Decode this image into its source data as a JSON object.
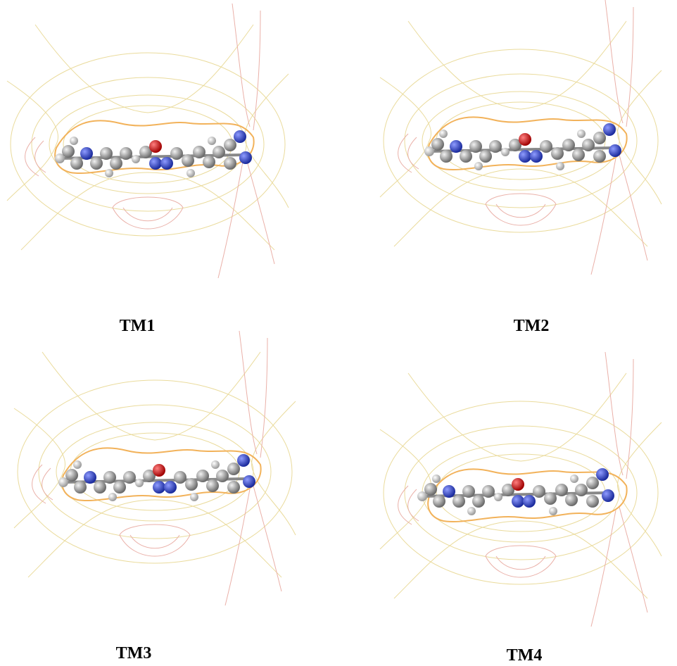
{
  "panels": [
    {
      "label": "TM1"
    },
    {
      "label": "TM2"
    },
    {
      "label": "TM3"
    },
    {
      "label": "TM4"
    }
  ]
}
